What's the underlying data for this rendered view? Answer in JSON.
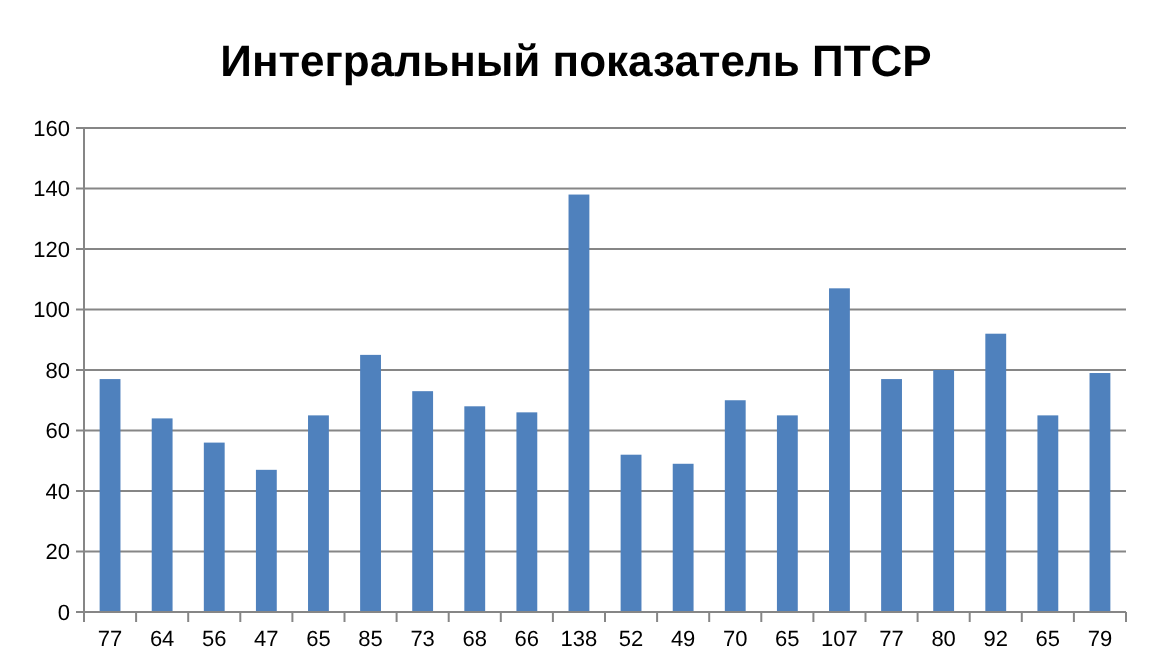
{
  "chart_data": {
    "type": "bar",
    "title": "Интегральный показатель ПТСР",
    "categories": [
      "77",
      "64",
      "56",
      "47",
      "65",
      "85",
      "73",
      "68",
      "66",
      "138",
      "52",
      "49",
      "70",
      "65",
      "107",
      "77",
      "80",
      "92",
      "65",
      "79"
    ],
    "values": [
      77,
      64,
      56,
      47,
      65,
      85,
      73,
      68,
      66,
      138,
      52,
      49,
      70,
      65,
      107,
      77,
      80,
      92,
      65,
      79
    ],
    "color": "#4f81bd",
    "ylim": [
      0,
      160
    ],
    "yticks": [
      0,
      20,
      40,
      60,
      80,
      100,
      120,
      140,
      160
    ],
    "grid": "y"
  }
}
